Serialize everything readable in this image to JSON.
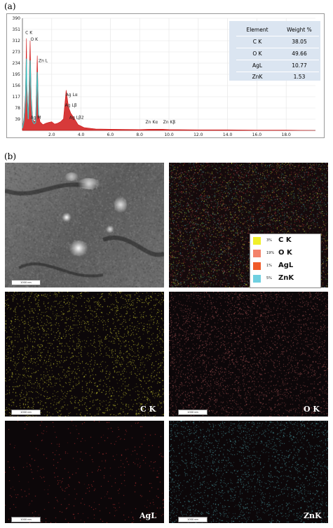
{
  "panel_a_label": "(a)",
  "panel_b_label": "(b)",
  "chart_data": {
    "type": "line",
    "title": "",
    "xlabel": "",
    "ylabel": "",
    "x_ticks": [
      "2.0",
      "4.0",
      "6.0",
      "8.0",
      "10.0",
      "12.0",
      "14.0",
      "16.0",
      "18.0"
    ],
    "y_ticks": [
      "390",
      "351",
      "312",
      "273",
      "234",
      "195",
      "156",
      "117",
      "78",
      "39"
    ],
    "xlim": [
      0,
      20
    ],
    "ylim": [
      0,
      390
    ],
    "grid": true,
    "series": [
      {
        "x": [
          0,
          0.1,
          0.2,
          0.277,
          0.3,
          0.4,
          0.525,
          0.6,
          0.7,
          0.8,
          0.9,
          1.012,
          1.1,
          1.2,
          1.4,
          1.6,
          1.8,
          2.0,
          2.2,
          2.4,
          2.6,
          2.8,
          2.984,
          3.15,
          3.3,
          3.5,
          3.8,
          4.2,
          5,
          6,
          8,
          8.63,
          9.57,
          10,
          12,
          14,
          16,
          18,
          20
        ],
        "y": [
          10,
          40,
          120,
          320,
          160,
          50,
          312,
          120,
          40,
          30,
          35,
          260,
          60,
          30,
          20,
          25,
          28,
          30,
          22,
          25,
          30,
          40,
          140,
          80,
          60,
          45,
          20,
          10,
          5,
          4,
          3,
          4,
          4,
          3,
          2,
          2,
          1,
          1,
          0
        ]
      }
    ],
    "peak_labels": [
      "C K",
      "O K",
      "Zn L",
      "Ag M",
      "Ag Lα",
      "Ag Lβ",
      "Ag Lβ2",
      "Zn Kα",
      "Zn Kβ"
    ]
  },
  "weight_table": {
    "header": {
      "element": "Element",
      "weight": "Weight %"
    },
    "rows": [
      {
        "element": "C K",
        "weight": "38.05"
      },
      {
        "element": "O K",
        "weight": "49.66"
      },
      {
        "element": "AgL",
        "weight": "10.77"
      },
      {
        "element": "ZnK",
        "weight": "1.53"
      }
    ]
  },
  "scale_bar_text": "1000 nm",
  "legend": [
    {
      "pct": "3%",
      "name": "C K",
      "color": "#f0ef2a"
    },
    {
      "pct": "19%",
      "name": "O K",
      "color": "#f3826a"
    },
    {
      "pct": "1%",
      "name": "AgL",
      "color": "#f05a28"
    },
    {
      "pct": "5%",
      "name": "ZnK",
      "color": "#6fcfe0"
    }
  ],
  "map_labels": {
    "ck": "C K",
    "ok": "O K",
    "agl": "AgL",
    "znk": "ZnK"
  },
  "colors": {
    "ck_dots": "#c8c832",
    "ok_dots": "#a05050",
    "agl_dots": "#b03030",
    "znk_dots": "#4a9aa0",
    "spectrum_fill": "#d01818",
    "spectrum_cyan": "#40c0c0"
  }
}
